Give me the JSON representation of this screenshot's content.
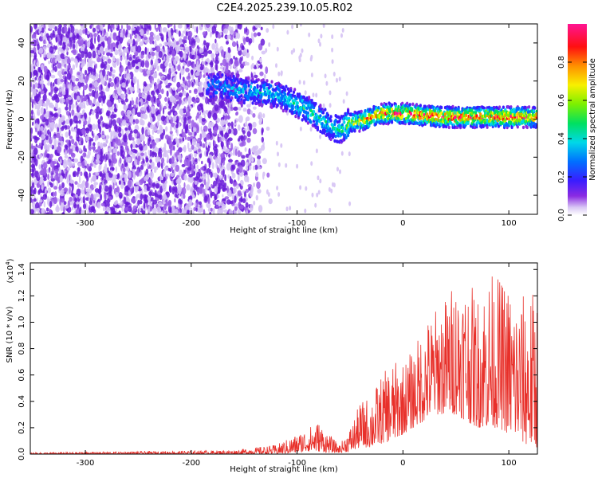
{
  "page_title": "C2E4.2025.239.10.05.R02",
  "chart_data": [
    {
      "type": "heatmap",
      "title": "C2E4.2025.239.10.05.R02",
      "xlabel": "Height of straight line (km)",
      "ylabel": "Frequency (Hz)",
      "xlim": [
        -352,
        127
      ],
      "ylim": [
        -50,
        50
      ],
      "xticks": [
        -300,
        -200,
        -100,
        0,
        100
      ],
      "xtick_labels": [
        "-300",
        "-200",
        "-100",
        "0",
        "100"
      ],
      "yticks": [
        -40,
        -20,
        0,
        20,
        40
      ],
      "ytick_labels": [
        "-40",
        "-20",
        "0",
        "20",
        "40"
      ],
      "colorbar": {
        "label": "Normalized spectral amplitude",
        "range": [
          0,
          1
        ],
        "ticks": [
          0.0,
          0.2,
          0.4,
          0.6,
          0.8
        ],
        "tick_labels": [
          "0.0",
          "0.2",
          "0.4",
          "0.6",
          "0.8"
        ]
      },
      "signal_track": {
        "description_points_x_km": [
          -180,
          -150,
          -120,
          -100,
          -85,
          -70,
          -60,
          -50,
          -40,
          -30,
          -20,
          -10,
          0,
          20,
          40,
          60,
          80,
          100,
          127
        ],
        "frequency_hz": [
          18,
          15,
          13,
          8,
          3,
          -3,
          -6,
          -2,
          -1,
          1,
          3,
          3,
          3,
          2,
          1,
          1,
          1,
          1,
          1
        ],
        "peak_amplitude": [
          0.3,
          0.35,
          0.35,
          0.4,
          0.45,
          0.4,
          0.45,
          0.6,
          0.75,
          0.8,
          0.85,
          0.9,
          0.9,
          0.92,
          0.95,
          0.95,
          0.9,
          0.9,
          0.85
        ]
      },
      "noise_region_km": [
        -352,
        -150
      ]
    },
    {
      "type": "line",
      "xlabel": "Height of straight line (km)",
      "ylabel": "SNR (10 * v/v)",
      "scale_label_base": "(x10",
      "scale_label_exp": "4",
      "scale_label_close": ")",
      "xlim": [
        -352,
        127
      ],
      "ylim": [
        0,
        1.45
      ],
      "xticks": [
        -300,
        -200,
        -100,
        0,
        100
      ],
      "xtick_labels": [
        "-300",
        "-200",
        "-100",
        "0",
        "100"
      ],
      "yticks": [
        0.0,
        0.2,
        0.4,
        0.6,
        0.8,
        1.0,
        1.2,
        1.4
      ],
      "ytick_labels": [
        "0.0",
        "0.2",
        "0.4",
        "0.6",
        "0.8",
        "1.0",
        "1.2",
        "1.4"
      ],
      "line_color": "#e8302a",
      "series": [
        {
          "name": "SNR envelope",
          "x": [
            -352,
            -250,
            -160,
            -120,
            -100,
            -90,
            -80,
            -70,
            -60,
            -50,
            -40,
            -30,
            -20,
            -10,
            0,
            10,
            20,
            30,
            40,
            50,
            60,
            70,
            80,
            90,
            100,
            110,
            120,
            127
          ],
          "peak": [
            0.01,
            0.02,
            0.03,
            0.07,
            0.15,
            0.2,
            0.25,
            0.15,
            0.07,
            0.2,
            0.4,
            0.45,
            0.6,
            0.7,
            0.7,
            0.8,
            1.0,
            1.1,
            1.2,
            1.35,
            1.35,
            1.2,
            1.4,
            1.35,
            1.3,
            1.2,
            1.25,
            1.25
          ],
          "floor": [
            0.0,
            0.0,
            0.0,
            0.0,
            0.01,
            0.02,
            0.02,
            0.01,
            0.01,
            0.02,
            0.05,
            0.05,
            0.08,
            0.1,
            0.15,
            0.2,
            0.25,
            0.3,
            0.3,
            0.3,
            0.25,
            0.2,
            0.2,
            0.2,
            0.15,
            0.1,
            0.05,
            0.05
          ]
        }
      ]
    }
  ],
  "colors": {
    "snr_line": "#e8302a",
    "noise_purple": "#6a1bd9",
    "background": "#ffffff"
  }
}
